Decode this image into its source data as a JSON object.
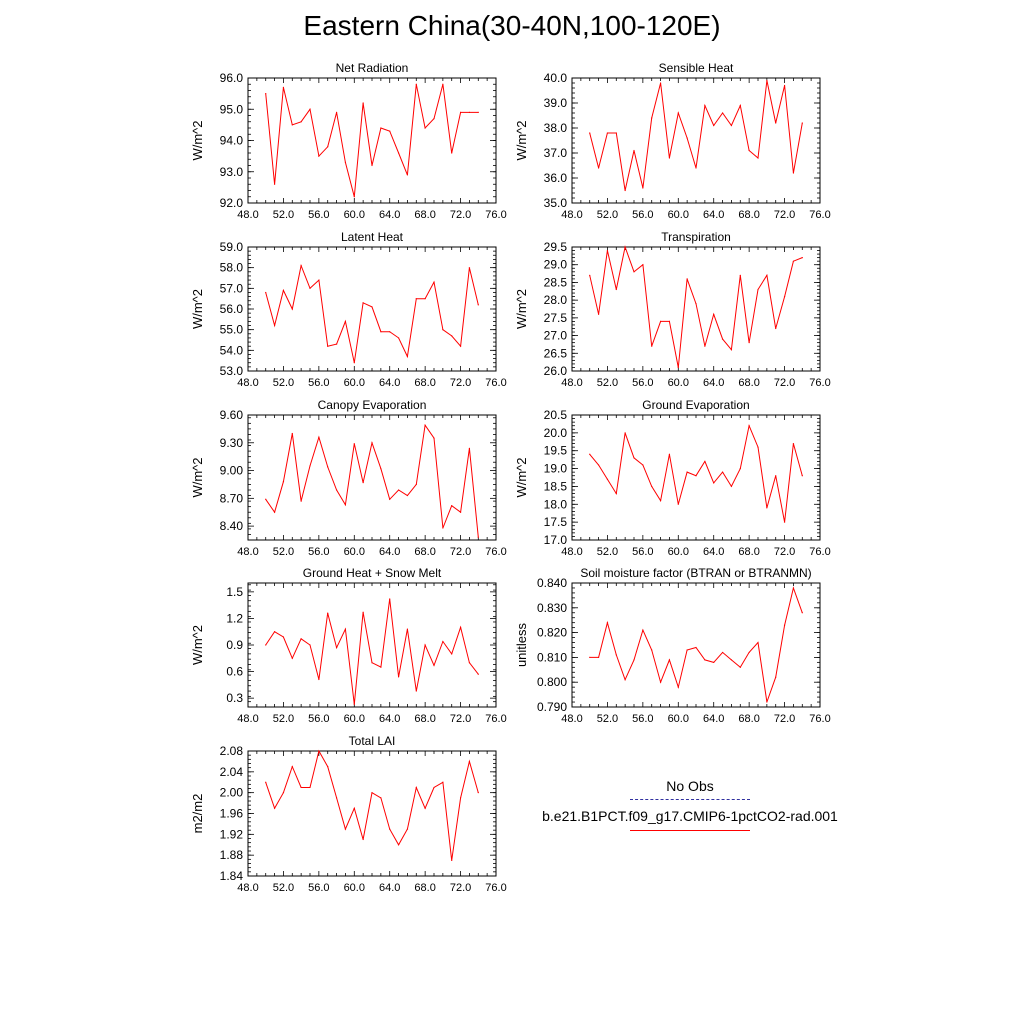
{
  "title": "Eastern China(30-40N,100-120E)",
  "x_tick_labels": [
    "48.0",
    "52.0",
    "56.0",
    "60.0",
    "64.0",
    "68.0",
    "72.0",
    "76.0"
  ],
  "legend": {
    "obs_label": "No Obs",
    "run_label": "b.e21.B1PCT.f09_g17.CMIP6-1pctCO2-rad.001",
    "obs_color": "#3030a0",
    "run_color": "#ff0000"
  },
  "chart_data": [
    {
      "type": "line",
      "title": "Net Radiation",
      "ylabel": "W/m^2",
      "xlim": [
        48,
        76
      ],
      "ylim": [
        92.0,
        96.0
      ],
      "yticks": [
        "92.0",
        "93.0",
        "94.0",
        "95.0",
        "96.0"
      ],
      "x": [
        50,
        51,
        52,
        53,
        54,
        55,
        56,
        57,
        58,
        59,
        60,
        61,
        62,
        63,
        64,
        65,
        66,
        67,
        68,
        69,
        70,
        71,
        72,
        73,
        74
      ],
      "series": [
        {
          "color": "#ff0000",
          "values": [
            95.5,
            92.6,
            95.7,
            94.5,
            94.6,
            95.0,
            93.5,
            93.8,
            94.9,
            93.3,
            92.2,
            95.2,
            93.2,
            94.4,
            94.3,
            93.6,
            92.9,
            95.8,
            94.4,
            94.7,
            95.8,
            93.6,
            94.9,
            94.9,
            94.9
          ]
        }
      ]
    },
    {
      "type": "line",
      "title": "Sensible Heat",
      "ylabel": "W/m^2",
      "xlim": [
        48,
        76
      ],
      "ylim": [
        35.0,
        40.0
      ],
      "yticks": [
        "35.0",
        "36.0",
        "37.0",
        "38.0",
        "39.0",
        "40.0"
      ],
      "x": [
        50,
        51,
        52,
        53,
        54,
        55,
        56,
        57,
        58,
        59,
        60,
        61,
        62,
        63,
        64,
        65,
        66,
        67,
        68,
        69,
        70,
        71,
        72,
        73,
        74
      ],
      "series": [
        {
          "color": "#ff0000",
          "values": [
            37.8,
            36.4,
            37.8,
            37.8,
            35.5,
            37.1,
            35.6,
            38.4,
            39.8,
            36.8,
            38.6,
            37.6,
            36.4,
            38.9,
            38.1,
            38.6,
            38.1,
            38.9,
            37.1,
            36.8,
            39.9,
            38.2,
            39.7,
            36.2,
            38.2
          ]
        }
      ]
    },
    {
      "type": "line",
      "title": "Latent Heat",
      "ylabel": "W/m^2",
      "xlim": [
        48,
        76
      ],
      "ylim": [
        53.0,
        59.0
      ],
      "yticks": [
        "53.0",
        "54.0",
        "55.0",
        "56.0",
        "57.0",
        "58.0",
        "59.0"
      ],
      "x": [
        50,
        51,
        52,
        53,
        54,
        55,
        56,
        57,
        58,
        59,
        60,
        61,
        62,
        63,
        64,
        65,
        66,
        67,
        68,
        69,
        70,
        71,
        72,
        73,
        74
      ],
      "series": [
        {
          "color": "#ff0000",
          "values": [
            56.8,
            55.2,
            56.9,
            56.0,
            58.1,
            57.0,
            57.4,
            54.2,
            54.3,
            55.4,
            53.4,
            56.3,
            56.1,
            54.9,
            54.9,
            54.6,
            53.7,
            56.5,
            56.5,
            57.3,
            55.0,
            54.7,
            54.2,
            58.0,
            56.2
          ]
        }
      ]
    },
    {
      "type": "line",
      "title": "Transpiration",
      "ylabel": "W/m^2",
      "xlim": [
        48,
        76
      ],
      "ylim": [
        26.0,
        29.5
      ],
      "yticks": [
        "26.0",
        "26.5",
        "27.0",
        "27.5",
        "28.0",
        "28.5",
        "29.0",
        "29.5"
      ],
      "x": [
        50,
        51,
        52,
        53,
        54,
        55,
        56,
        57,
        58,
        59,
        60,
        61,
        62,
        63,
        64,
        65,
        66,
        67,
        68,
        69,
        70,
        71,
        72,
        73,
        74
      ],
      "series": [
        {
          "color": "#ff0000",
          "values": [
            28.7,
            27.6,
            29.4,
            28.3,
            29.5,
            28.8,
            29.0,
            26.7,
            27.4,
            27.4,
            26.1,
            28.6,
            27.9,
            26.7,
            27.6,
            26.9,
            26.6,
            28.7,
            26.8,
            28.3,
            28.7,
            27.2,
            28.1,
            29.1,
            29.2
          ]
        }
      ]
    },
    {
      "type": "line",
      "title": "Canopy Evaporation",
      "ylabel": "W/m^2",
      "xlim": [
        48,
        76
      ],
      "ylim": [
        8.25,
        9.6
      ],
      "yticks": [
        "8.40",
        "8.70",
        "9.00",
        "9.30",
        "9.60"
      ],
      "x": [
        50,
        51,
        52,
        53,
        54,
        55,
        56,
        57,
        58,
        59,
        60,
        61,
        62,
        63,
        64,
        65,
        66,
        67,
        68,
        69,
        70,
        71,
        72,
        73,
        74
      ],
      "series": [
        {
          "color": "#ff0000",
          "values": [
            8.69,
            8.55,
            8.88,
            9.4,
            8.67,
            9.05,
            9.36,
            9.04,
            8.79,
            8.63,
            9.29,
            8.87,
            9.3,
            9.02,
            8.69,
            8.79,
            8.73,
            8.85,
            9.49,
            9.35,
            8.38,
            8.62,
            8.55,
            9.24,
            8.28
          ]
        }
      ]
    },
    {
      "type": "line",
      "title": "Ground Evaporation",
      "ylabel": "W/m^2",
      "xlim": [
        48,
        76
      ],
      "ylim": [
        17.0,
        20.5
      ],
      "yticks": [
        "17.0",
        "17.5",
        "18.0",
        "18.5",
        "19.0",
        "19.5",
        "20.0",
        "20.5"
      ],
      "x": [
        50,
        51,
        52,
        53,
        54,
        55,
        56,
        57,
        58,
        59,
        60,
        61,
        62,
        63,
        64,
        65,
        66,
        67,
        68,
        69,
        70,
        71,
        72,
        73,
        74
      ],
      "series": [
        {
          "color": "#ff0000",
          "values": [
            19.4,
            19.1,
            18.7,
            18.3,
            20.0,
            19.3,
            19.1,
            18.5,
            18.1,
            19.4,
            18.0,
            18.9,
            18.8,
            19.2,
            18.6,
            18.9,
            18.5,
            19.0,
            20.2,
            19.6,
            17.9,
            18.8,
            17.5,
            19.7,
            18.8
          ]
        }
      ]
    },
    {
      "type": "line",
      "title": "Ground Heat + Snow Melt",
      "ylabel": "W/m^2",
      "xlim": [
        48,
        76
      ],
      "ylim": [
        0.2,
        1.6
      ],
      "yticks": [
        "0.3",
        "0.6",
        "0.9",
        "1.2",
        "1.5"
      ],
      "x": [
        50,
        51,
        52,
        53,
        54,
        55,
        56,
        57,
        58,
        59,
        60,
        61,
        62,
        63,
        64,
        65,
        66,
        67,
        68,
        69,
        70,
        71,
        72,
        73,
        74
      ],
      "series": [
        {
          "color": "#ff0000",
          "values": [
            0.9,
            1.05,
            0.99,
            0.75,
            0.97,
            0.9,
            0.51,
            1.26,
            0.87,
            1.08,
            0.23,
            1.27,
            0.7,
            0.65,
            1.42,
            0.54,
            1.08,
            0.38,
            0.9,
            0.67,
            0.94,
            0.8,
            1.1,
            0.7,
            0.57
          ]
        }
      ]
    },
    {
      "type": "line",
      "title": "Soil moisture factor (BTRAN or BTRANMN)",
      "ylabel": "unitless",
      "xlim": [
        48,
        76
      ],
      "ylim": [
        0.79,
        0.84
      ],
      "yticks": [
        "0.790",
        "0.800",
        "0.810",
        "0.820",
        "0.830",
        "0.840"
      ],
      "x": [
        50,
        51,
        52,
        53,
        54,
        55,
        56,
        57,
        58,
        59,
        60,
        61,
        62,
        63,
        64,
        65,
        66,
        67,
        68,
        69,
        70,
        71,
        72,
        73,
        74
      ],
      "series": [
        {
          "color": "#ff0000",
          "values": [
            0.81,
            0.81,
            0.824,
            0.811,
            0.801,
            0.809,
            0.821,
            0.813,
            0.8,
            0.809,
            0.798,
            0.813,
            0.814,
            0.809,
            0.808,
            0.812,
            0.809,
            0.806,
            0.812,
            0.816,
            0.792,
            0.802,
            0.823,
            0.838,
            0.828
          ]
        }
      ]
    },
    {
      "type": "line",
      "title": "Total LAI",
      "ylabel": "m2/m2",
      "xlim": [
        48,
        76
      ],
      "ylim": [
        1.84,
        2.08
      ],
      "yticks": [
        "1.84",
        "1.88",
        "1.92",
        "1.96",
        "2.00",
        "2.04",
        "2.08"
      ],
      "x": [
        50,
        51,
        52,
        53,
        54,
        55,
        56,
        57,
        58,
        59,
        60,
        61,
        62,
        63,
        64,
        65,
        66,
        67,
        68,
        69,
        70,
        71,
        72,
        73,
        74
      ],
      "series": [
        {
          "color": "#ff0000",
          "values": [
            2.02,
            1.97,
            2.0,
            2.05,
            2.01,
            2.01,
            2.08,
            2.05,
            1.99,
            1.93,
            1.97,
            1.91,
            2.0,
            1.99,
            1.93,
            1.9,
            1.93,
            2.01,
            1.97,
            2.01,
            2.02,
            1.87,
            1.99,
            2.06,
            2.0
          ]
        }
      ]
    }
  ]
}
